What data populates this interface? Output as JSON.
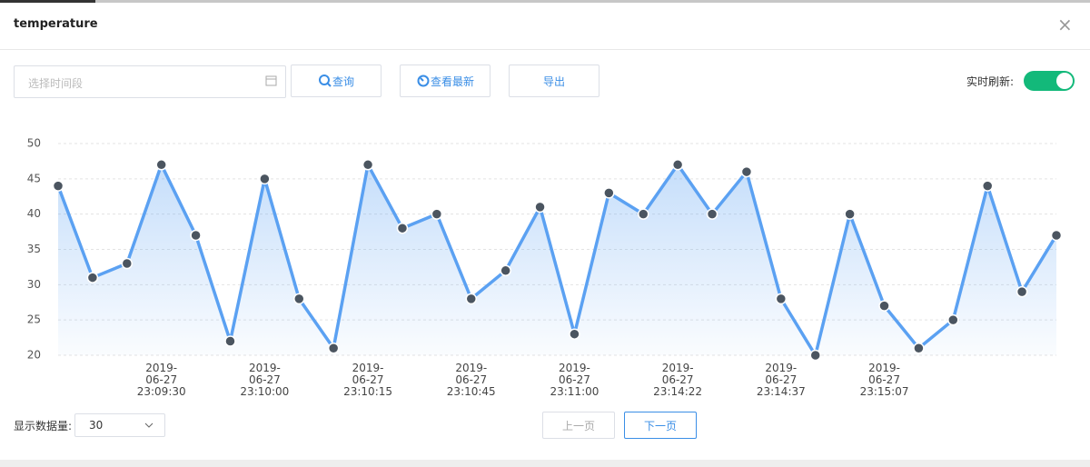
{
  "header": {
    "title": "temperature"
  },
  "toolbar": {
    "date_placeholder": "选择时间段",
    "query": "查询",
    "latest": "查看最新",
    "export": "导出",
    "refresh_label": "实时刷新:"
  },
  "chart_data": {
    "type": "line",
    "categories": [
      null,
      null,
      null,
      "2019-06-27\n23:09:30",
      null,
      null,
      "2019-06-27\n23:10:00",
      null,
      null,
      "2019-06-27\n23:10:15",
      null,
      null,
      "2019-06-27\n23:10:45",
      null,
      null,
      "2019-06-27\n23:11:00",
      null,
      null,
      "2019-06-27\n23:14:22",
      null,
      null,
      "2019-06-27\n23:14:37",
      null,
      null,
      "2019-06-27\n23:15:07",
      null,
      null,
      null,
      null,
      null
    ],
    "values": [
      44,
      31,
      33,
      47,
      37,
      22,
      45,
      28,
      21,
      47,
      38,
      40,
      28,
      32,
      41,
      23,
      43,
      40,
      47,
      40,
      46,
      28,
      20,
      40,
      27,
      21,
      25,
      44,
      29,
      37
    ],
    "color": "#5ba1f2",
    "marker_color": "#4b5560",
    "ylim": [
      20,
      50
    ],
    "yticks": [
      20,
      25,
      30,
      35,
      40,
      45,
      50
    ],
    "grid": true
  },
  "footer": {
    "count_label": "显示数据量:",
    "count_value": "30",
    "prev": "上一页",
    "next": "下一页"
  }
}
